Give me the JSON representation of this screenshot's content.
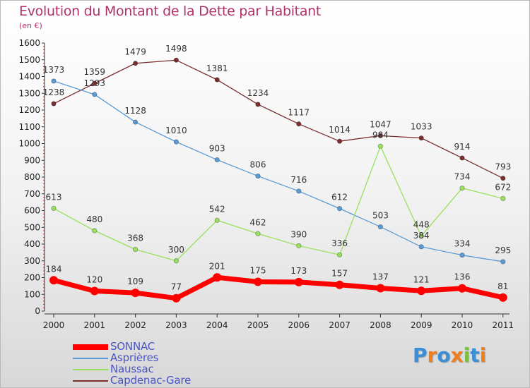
{
  "header": {
    "title": "Evolution du Montant de la Dette par Habitant",
    "subtitle": "(en €)"
  },
  "chart_data": {
    "type": "line",
    "title": "Evolution du Montant de la Dette par Habitant",
    "subtitle": "(en €)",
    "xlabel": "",
    "ylabel": "",
    "categories": [
      "2000",
      "2001",
      "2002",
      "2003",
      "2004",
      "2005",
      "2006",
      "2007",
      "2008",
      "2009",
      "2010",
      "2011"
    ],
    "ylim": [
      0,
      1600
    ],
    "yticks": [
      0,
      100,
      200,
      300,
      400,
      500,
      600,
      700,
      800,
      900,
      1000,
      1100,
      1200,
      1300,
      1400,
      1500,
      1600
    ],
    "grid": false,
    "legend_position": "bottom-left",
    "series": [
      {
        "name": "SONNAC",
        "color": "#ff0000",
        "values": [
          184,
          120,
          109,
          77,
          201,
          175,
          173,
          157,
          137,
          121,
          136,
          81
        ]
      },
      {
        "name": "Asprières",
        "color": "#5b9bd5",
        "values": [
          1373,
          1293,
          1128,
          1010,
          903,
          806,
          716,
          612,
          503,
          384,
          334,
          295
        ]
      },
      {
        "name": "Naussac",
        "color": "#99e05c",
        "values": [
          613,
          480,
          368,
          300,
          542,
          462,
          390,
          336,
          984,
          448,
          734,
          672
        ]
      },
      {
        "name": "Capdenac-Gare",
        "color": "#7a2e2e",
        "values": [
          1238,
          1359,
          1479,
          1498,
          1381,
          1234,
          1117,
          1014,
          1047,
          1033,
          914,
          793
        ]
      }
    ]
  },
  "logo": {
    "text": "Proxiti",
    "letters": [
      {
        "ch": "P",
        "color": "#3b8fd6"
      },
      {
        "ch": "r",
        "color": "#f07f1d"
      },
      {
        "ch": "o",
        "color": "#3b8fd6"
      },
      {
        "ch": "x",
        "color": "#f07f1d"
      },
      {
        "ch": "i",
        "color": "#7bc043"
      },
      {
        "ch": "t",
        "color": "#3b8fd6"
      },
      {
        "ch": "i",
        "color": "#f07f1d"
      }
    ]
  }
}
